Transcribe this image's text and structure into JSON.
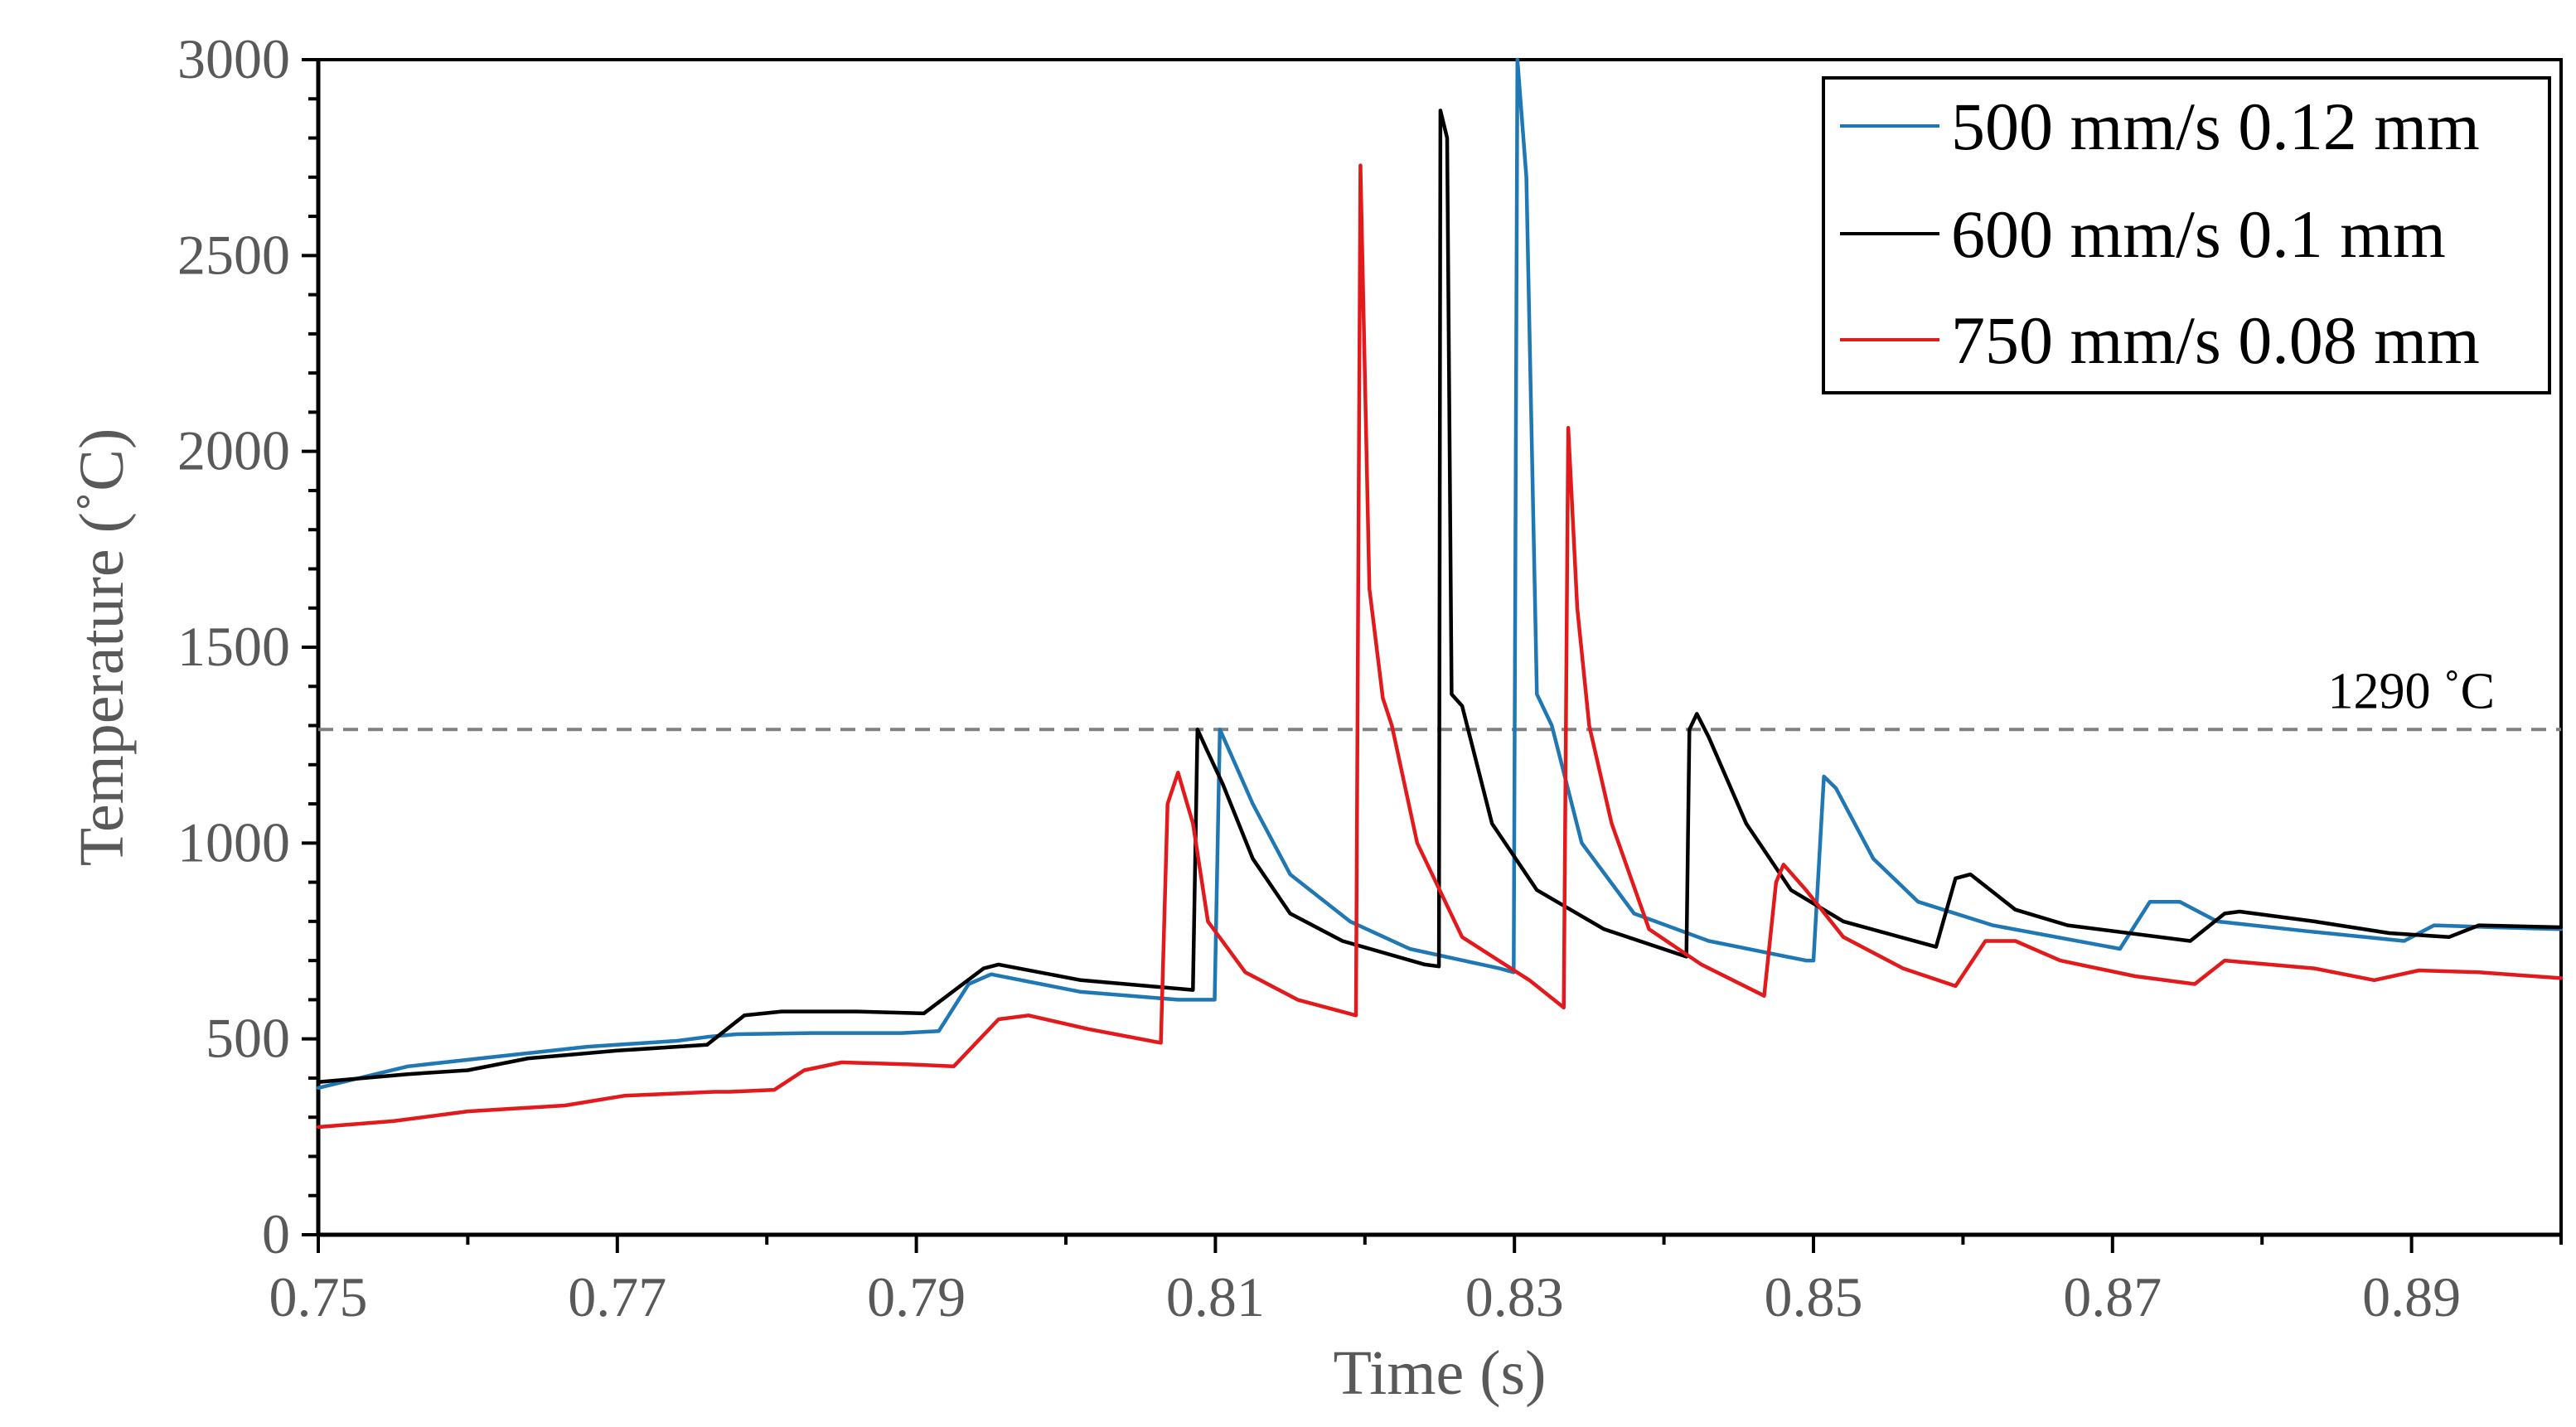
{
  "chart_data": {
    "type": "line",
    "title": "",
    "xlabel": "Time (s)",
    "ylabel": "Temperature (˚C)",
    "xlim": [
      0.75,
      0.9
    ],
    "ylim": [
      0,
      3000
    ],
    "x_ticks": [
      0.75,
      0.77,
      0.79,
      0.81,
      0.83,
      0.85,
      0.87,
      0.89
    ],
    "x_tick_labels": [
      "0.75",
      "0.77",
      "0.79",
      "0.81",
      "0.83",
      "0.85",
      "0.87",
      "0.89"
    ],
    "y_ticks": [
      0,
      500,
      1000,
      1500,
      2000,
      2500,
      3000
    ],
    "y_tick_labels": [
      "0",
      "500",
      "1000",
      "1500",
      "2000",
      "2500",
      "3000"
    ],
    "grid": false,
    "legend_position": "top-right",
    "reference_line": {
      "y": 1290,
      "label": "1290 ˚C",
      "color": "#808080",
      "style": "dashed"
    },
    "series": [
      {
        "name": "500 mm/s 0.12 mm",
        "color": "#1f77b4",
        "points": [
          [
            0.75,
            375
          ],
          [
            0.756,
            430
          ],
          [
            0.762,
            455
          ],
          [
            0.768,
            480
          ],
          [
            0.774,
            495
          ],
          [
            0.776,
            505
          ],
          [
            0.778,
            512
          ],
          [
            0.783,
            515
          ],
          [
            0.789,
            515
          ],
          [
            0.7915,
            520
          ],
          [
            0.7935,
            640
          ],
          [
            0.795,
            665
          ],
          [
            0.801,
            620
          ],
          [
            0.8075,
            600
          ],
          [
            0.80995,
            600
          ],
          [
            0.8103,
            1290
          ],
          [
            0.811,
            1230
          ],
          [
            0.8125,
            1100
          ],
          [
            0.815,
            920
          ],
          [
            0.819,
            800
          ],
          [
            0.823,
            730
          ],
          [
            0.829,
            680
          ],
          [
            0.82995,
            670
          ],
          [
            0.8302,
            3000
          ],
          [
            0.8308,
            2700
          ],
          [
            0.8315,
            1380
          ],
          [
            0.8325,
            1300
          ],
          [
            0.8345,
            1000
          ],
          [
            0.838,
            820
          ],
          [
            0.843,
            750
          ],
          [
            0.8495,
            700
          ],
          [
            0.85,
            700
          ],
          [
            0.8507,
            1170
          ],
          [
            0.8515,
            1140
          ],
          [
            0.854,
            960
          ],
          [
            0.857,
            850
          ],
          [
            0.862,
            790
          ],
          [
            0.8705,
            730
          ],
          [
            0.8725,
            850
          ],
          [
            0.8745,
            850
          ],
          [
            0.877,
            800
          ],
          [
            0.883,
            775
          ],
          [
            0.8895,
            750
          ],
          [
            0.8915,
            790
          ],
          [
            0.8955,
            785
          ],
          [
            0.9,
            780
          ]
        ]
      },
      {
        "name": "600 mm/s 0.1 mm",
        "color": "#000000",
        "points": [
          [
            0.75,
            390
          ],
          [
            0.756,
            410
          ],
          [
            0.76,
            420
          ],
          [
            0.764,
            450
          ],
          [
            0.77,
            470
          ],
          [
            0.776,
            485
          ],
          [
            0.7785,
            560
          ],
          [
            0.781,
            570
          ],
          [
            0.786,
            570
          ],
          [
            0.7905,
            565
          ],
          [
            0.7945,
            680
          ],
          [
            0.7955,
            690
          ],
          [
            0.801,
            650
          ],
          [
            0.8085,
            625
          ],
          [
            0.8088,
            1290
          ],
          [
            0.8094,
            1240
          ],
          [
            0.8105,
            1150
          ],
          [
            0.8125,
            960
          ],
          [
            0.815,
            820
          ],
          [
            0.8185,
            750
          ],
          [
            0.824,
            690
          ],
          [
            0.82495,
            685
          ],
          [
            0.82505,
            2870
          ],
          [
            0.8255,
            2800
          ],
          [
            0.8258,
            1380
          ],
          [
            0.8265,
            1350
          ],
          [
            0.8285,
            1050
          ],
          [
            0.8315,
            880
          ],
          [
            0.836,
            780
          ],
          [
            0.8415,
            710
          ],
          [
            0.8417,
            1290
          ],
          [
            0.8422,
            1330
          ],
          [
            0.843,
            1270
          ],
          [
            0.8455,
            1050
          ],
          [
            0.8485,
            880
          ],
          [
            0.852,
            800
          ],
          [
            0.8582,
            735
          ],
          [
            0.8595,
            910
          ],
          [
            0.8605,
            920
          ],
          [
            0.8635,
            830
          ],
          [
            0.867,
            790
          ],
          [
            0.8752,
            750
          ],
          [
            0.8775,
            820
          ],
          [
            0.8785,
            825
          ],
          [
            0.8835,
            800
          ],
          [
            0.8885,
            770
          ],
          [
            0.8925,
            760
          ],
          [
            0.8945,
            790
          ],
          [
            0.9,
            785
          ]
        ]
      },
      {
        "name": "750 mm/s 0.08 mm",
        "color": "#e31a1c",
        "points": [
          [
            0.75,
            275
          ],
          [
            0.755,
            290
          ],
          [
            0.76,
            315
          ],
          [
            0.7665,
            330
          ],
          [
            0.7705,
            355
          ],
          [
            0.7765,
            365
          ],
          [
            0.7775,
            365
          ],
          [
            0.7805,
            370
          ],
          [
            0.7825,
            420
          ],
          [
            0.785,
            440
          ],
          [
            0.7895,
            435
          ],
          [
            0.7925,
            430
          ],
          [
            0.7955,
            550
          ],
          [
            0.7975,
            560
          ],
          [
            0.8015,
            525
          ],
          [
            0.80635,
            490
          ],
          [
            0.8068,
            1100
          ],
          [
            0.8075,
            1180
          ],
          [
            0.8085,
            1050
          ],
          [
            0.8095,
            800
          ],
          [
            0.812,
            670
          ],
          [
            0.8155,
            600
          ],
          [
            0.8194,
            560
          ],
          [
            0.8197,
            2730
          ],
          [
            0.8203,
            1650
          ],
          [
            0.8212,
            1370
          ],
          [
            0.8218,
            1300
          ],
          [
            0.8235,
            1000
          ],
          [
            0.8265,
            760
          ],
          [
            0.831,
            650
          ],
          [
            0.8333,
            580
          ],
          [
            0.8336,
            2060
          ],
          [
            0.8342,
            1600
          ],
          [
            0.835,
            1300
          ],
          [
            0.8365,
            1050
          ],
          [
            0.839,
            780
          ],
          [
            0.8425,
            690
          ],
          [
            0.8467,
            610
          ],
          [
            0.8475,
            900
          ],
          [
            0.848,
            945
          ],
          [
            0.8495,
            880
          ],
          [
            0.852,
            760
          ],
          [
            0.856,
            680
          ],
          [
            0.8595,
            635
          ],
          [
            0.8615,
            750
          ],
          [
            0.8635,
            750
          ],
          [
            0.8665,
            700
          ],
          [
            0.8715,
            660
          ],
          [
            0.8755,
            640
          ],
          [
            0.8775,
            700
          ],
          [
            0.8835,
            680
          ],
          [
            0.8875,
            650
          ],
          [
            0.8905,
            675
          ],
          [
            0.8945,
            670
          ],
          [
            0.9,
            655
          ]
        ]
      }
    ]
  }
}
